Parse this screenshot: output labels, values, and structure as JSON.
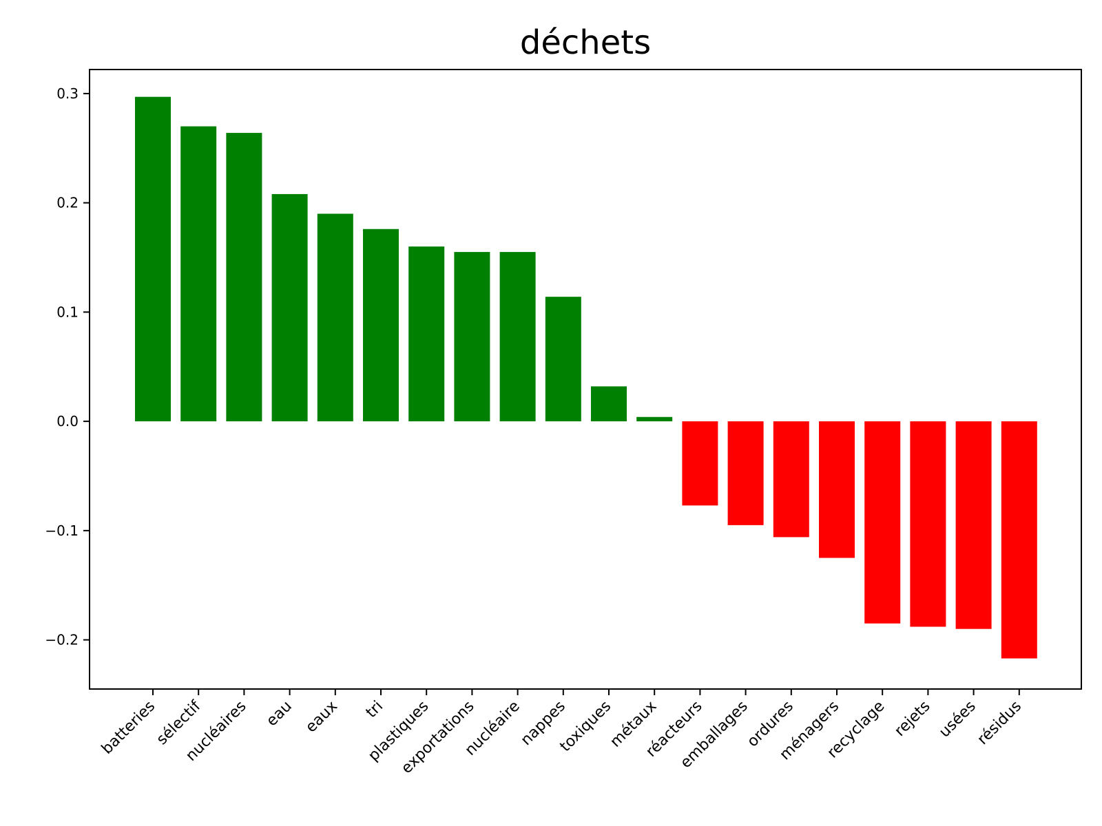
{
  "chart_data": {
    "type": "bar",
    "title": "déchets",
    "xlabel": "",
    "ylabel": "",
    "ylim": [
      -0.245,
      0.322
    ],
    "yticks": [
      -0.2,
      -0.1,
      0.0,
      0.1,
      0.2,
      0.3
    ],
    "ytick_labels": [
      "−0.2",
      "−0.1",
      "0.0",
      "0.1",
      "0.2",
      "0.3"
    ],
    "grid": false,
    "legend": "none",
    "categories": [
      "batteries",
      "sélectif",
      "nucléaires",
      "eau",
      "eaux",
      "tri",
      "plastiques",
      "exportations",
      "nucléaire",
      "nappes",
      "toxiques",
      "métaux",
      "réacteurs",
      "emballages",
      "ordures",
      "ménagers",
      "recyclage",
      "rejets",
      "usées",
      "résidus"
    ],
    "values": [
      0.297,
      0.27,
      0.264,
      0.208,
      0.19,
      0.176,
      0.16,
      0.155,
      0.155,
      0.114,
      0.032,
      0.004,
      -0.077,
      -0.095,
      -0.106,
      -0.125,
      -0.185,
      -0.188,
      -0.19,
      -0.217
    ],
    "colors": {
      "positive": "#008000",
      "negative": "#ff0000"
    },
    "xtick_rotation_deg": 45
  }
}
